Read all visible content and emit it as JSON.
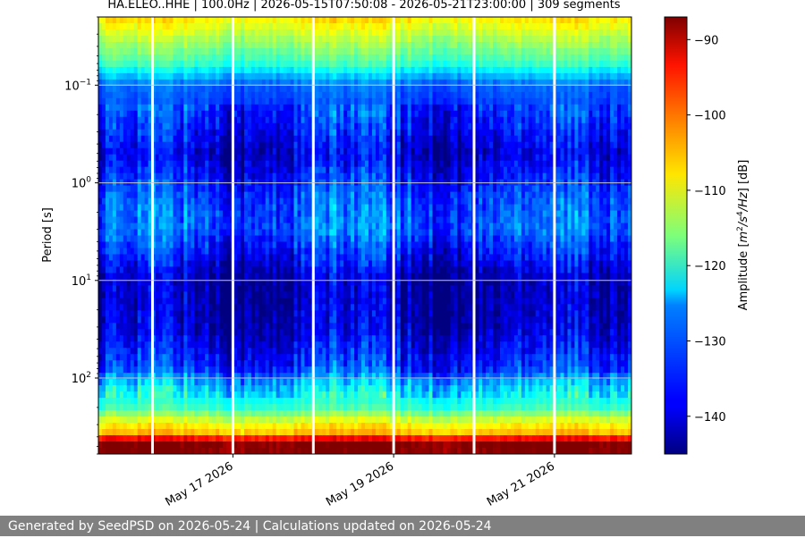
{
  "chart_data": {
    "type": "heatmap",
    "title": "HA.ELEO..HHE | 100.0Hz | 2026-05-15T07:50:08 - 2026-05-21T23:00:00 | 309 segments",
    "ylabel": "Period [s]",
    "y_scale": "log",
    "y_inverted": true,
    "ylim": [
      0.02,
      600
    ],
    "xlim": [
      "2026-05-15T07:50:08",
      "2026-05-21T23:00:00"
    ],
    "x_ticks": [
      {
        "date": "2026-05-17",
        "label": "May 17 2026"
      },
      {
        "date": "2026-05-19",
        "label": "May 19 2026"
      },
      {
        "date": "2026-05-21",
        "label": "May 21 2026"
      }
    ],
    "y_ticks": [
      {
        "value": 0.1,
        "base": "10",
        "exp": "−1"
      },
      {
        "value": 1,
        "base": "10",
        "exp": "0"
      },
      {
        "value": 10,
        "base": "10",
        "exp": "1"
      },
      {
        "value": 100,
        "base": "10",
        "exp": "2"
      }
    ],
    "grid": true,
    "colormap": "jet",
    "colorbar": {
      "label_main": "Amplitude [",
      "label_m": "m",
      "label_s": "/s",
      "label_hz": "/Hz",
      "label_end": "] [dB]",
      "sup_2": "2",
      "sup_4": "4",
      "range": [
        -145,
        -87
      ],
      "ticks": [
        {
          "value": -90,
          "label": "−90"
        },
        {
          "value": -100,
          "label": "−100"
        },
        {
          "value": -110,
          "label": "−110"
        },
        {
          "value": -120,
          "label": "−120"
        },
        {
          "value": -130,
          "label": "−130"
        },
        {
          "value": -140,
          "label": "−140"
        }
      ]
    },
    "data_gaps": [
      "2026-05-16T00:00:00",
      "2026-05-17T00:00:00",
      "2026-05-18T00:00:00",
      "2026-05-19T00:00:00",
      "2026-05-20T00:00:00",
      "2026-05-21T00:00:00"
    ],
    "period_profile": [
      {
        "period": 0.02,
        "amplitude": -107
      },
      {
        "period": 0.03,
        "amplitude": -112
      },
      {
        "period": 0.06,
        "amplitude": -120
      },
      {
        "period": 0.1,
        "amplitude": -132
      },
      {
        "period": 0.3,
        "amplitude": -137
      },
      {
        "period": 0.5,
        "amplitude": -140
      },
      {
        "period": 1.5,
        "amplitude": -133
      },
      {
        "period": 3,
        "amplitude": -132
      },
      {
        "period": 10,
        "amplitude": -142
      },
      {
        "period": 30,
        "amplitude": -141
      },
      {
        "period": 80,
        "amplitude": -135
      },
      {
        "period": 120,
        "amplitude": -126
      },
      {
        "period": 200,
        "amplitude": -120
      },
      {
        "period": 280,
        "amplitude": -110
      },
      {
        "period": 380,
        "amplitude": -104
      },
      {
        "period": 450,
        "amplitude": -87
      }
    ]
  },
  "footer": {
    "text": "Generated by SeedPSD on 2026-05-24 | Calculations updated on 2026-05-24"
  },
  "colors": {
    "footer_bg": "#808080",
    "footer_text": "#ffffff",
    "grid": "#c8c8c8",
    "gap": "#ffffff"
  }
}
